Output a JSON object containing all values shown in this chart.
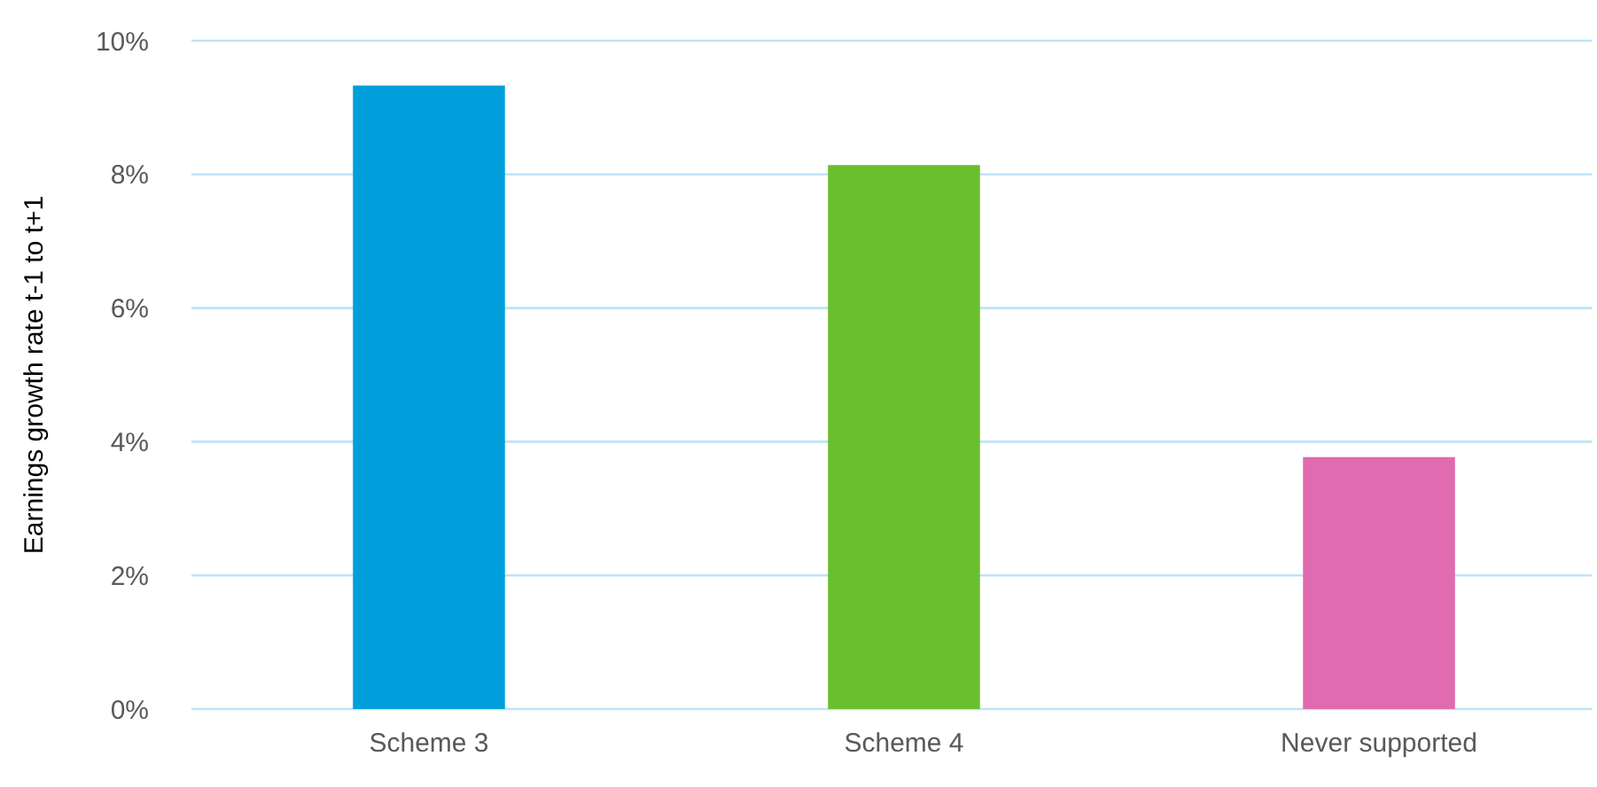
{
  "chart_data": {
    "type": "bar",
    "ylabel": "Earnings growth rate t-1 to t+1",
    "categories": [
      "Scheme 3",
      "Scheme 4",
      "Never supported"
    ],
    "values": [
      9.33,
      8.14,
      3.77
    ],
    "colors": [
      "#009fdb",
      "#6abf2e",
      "#e06bb0"
    ],
    "ylim": [
      0,
      10
    ],
    "yticks": [
      {
        "value": 0,
        "label": "0%"
      },
      {
        "value": 2,
        "label": "2%"
      },
      {
        "value": 4,
        "label": "4%"
      },
      {
        "value": 6,
        "label": "6%"
      },
      {
        "value": 8,
        "label": "8%"
      },
      {
        "value": 10,
        "label": "10%"
      }
    ],
    "grid": "y"
  }
}
